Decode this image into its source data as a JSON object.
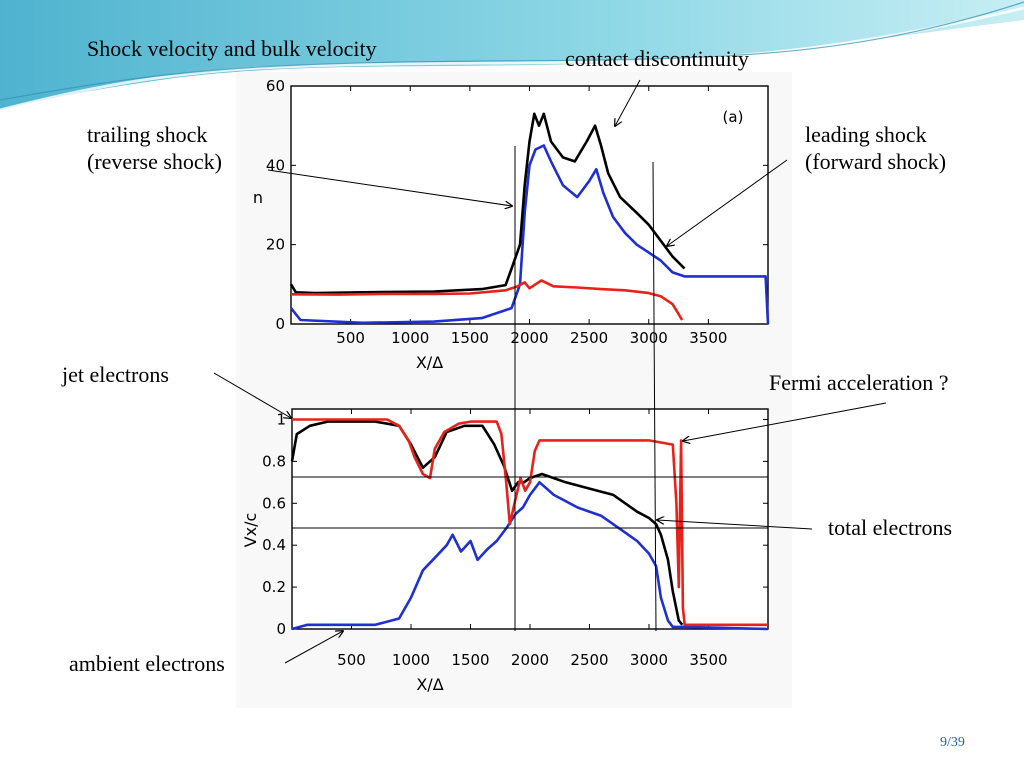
{
  "slide": {
    "title": "Shock velocity and bulk velocity",
    "page": "9/39"
  },
  "annotations": {
    "contact": "contact discontinuity",
    "trailing": "trailing shock\n(reverse shock)",
    "leading": "leading shock\n(forward shock)",
    "jet": "jet electrons",
    "fermi": "Fermi acceleration ?",
    "total": "total electrons",
    "ambient": "ambient electrons"
  },
  "colors": {
    "jet": "#e8221a",
    "total": "#000000",
    "ambient": "#1f2fd0",
    "accent": "#5bc8dc"
  },
  "chart_data": [
    {
      "type": "line",
      "panel": "(a)",
      "xlabel": "X/Δ",
      "ylabel": "n",
      "xlim": [
        0,
        4000
      ],
      "ylim": [
        0,
        60
      ],
      "xticks": [
        500,
        1000,
        1500,
        2000,
        2500,
        3000,
        3500
      ],
      "yticks": [
        0,
        20,
        40,
        60
      ],
      "series": [
        {
          "key": "total",
          "points": [
            [
              0,
              10
            ],
            [
              40,
              8
            ],
            [
              200,
              7.8
            ],
            [
              600,
              8
            ],
            [
              1200,
              8.2
            ],
            [
              1600,
              8.8
            ],
            [
              1800,
              9.8
            ],
            [
              1850,
              14
            ],
            [
              1920,
              20
            ],
            [
              1960,
              35
            ],
            [
              2000,
              46
            ],
            [
              2040,
              53
            ],
            [
              2080,
              50
            ],
            [
              2120,
              53
            ],
            [
              2180,
              46
            ],
            [
              2280,
              42
            ],
            [
              2380,
              41
            ],
            [
              2480,
              46
            ],
            [
              2550,
              50
            ],
            [
              2600,
              45
            ],
            [
              2660,
              38
            ],
            [
              2760,
              32
            ],
            [
              2900,
              28
            ],
            [
              3000,
              25
            ],
            [
              3100,
              21
            ],
            [
              3200,
              17
            ],
            [
              3300,
              14
            ]
          ]
        },
        {
          "key": "ambient",
          "points": [
            [
              0,
              4
            ],
            [
              80,
              1
            ],
            [
              600,
              0.3
            ],
            [
              1200,
              0.6
            ],
            [
              1600,
              1.5
            ],
            [
              1850,
              4
            ],
            [
              1920,
              10
            ],
            [
              1960,
              28
            ],
            [
              2000,
              40
            ],
            [
              2050,
              44
            ],
            [
              2120,
              45
            ],
            [
              2180,
              41
            ],
            [
              2280,
              35
            ],
            [
              2400,
              32
            ],
            [
              2500,
              36
            ],
            [
              2560,
              39
            ],
            [
              2620,
              33
            ],
            [
              2700,
              27
            ],
            [
              2800,
              23
            ],
            [
              2900,
              20
            ],
            [
              3000,
              18
            ],
            [
              3100,
              16
            ],
            [
              3200,
              13
            ],
            [
              3300,
              12
            ],
            [
              3980,
              12
            ],
            [
              4000,
              0
            ]
          ]
        },
        {
          "key": "jet",
          "points": [
            [
              0,
              7.5
            ],
            [
              400,
              7.4
            ],
            [
              800,
              7.6
            ],
            [
              1200,
              7.6
            ],
            [
              1500,
              7.7
            ],
            [
              1800,
              8.5
            ],
            [
              1900,
              9.5
            ],
            [
              1960,
              10.5
            ],
            [
              2000,
              9
            ],
            [
              2100,
              11
            ],
            [
              2200,
              9.5
            ],
            [
              2400,
              9.2
            ],
            [
              2600,
              8.8
            ],
            [
              2800,
              8.5
            ],
            [
              3000,
              7.8
            ],
            [
              3100,
              7
            ],
            [
              3200,
              5
            ],
            [
              3240,
              3
            ],
            [
              3280,
              1
            ]
          ]
        }
      ]
    },
    {
      "type": "line",
      "xlabel": "X/Δ",
      "ylabel": "Vx/c",
      "xlim": [
        0,
        4000
      ],
      "ylim": [
        0,
        1.05
      ],
      "xticks": [
        500,
        1000,
        1500,
        2000,
        2500,
        3000,
        3500
      ],
      "yticks": [
        0,
        0.2,
        0.4,
        0.6,
        0.8,
        1.0
      ],
      "series": [
        {
          "key": "total",
          "points": [
            [
              0,
              0.8
            ],
            [
              40,
              0.93
            ],
            [
              150,
              0.97
            ],
            [
              300,
              0.99
            ],
            [
              700,
              0.99
            ],
            [
              900,
              0.97
            ],
            [
              1000,
              0.88
            ],
            [
              1100,
              0.77
            ],
            [
              1200,
              0.82
            ],
            [
              1300,
              0.94
            ],
            [
              1450,
              0.97
            ],
            [
              1600,
              0.97
            ],
            [
              1700,
              0.88
            ],
            [
              1780,
              0.78
            ],
            [
              1850,
              0.66
            ],
            [
              1900,
              0.7
            ],
            [
              1950,
              0.7
            ],
            [
              2000,
              0.72
            ],
            [
              2100,
              0.74
            ],
            [
              2300,
              0.7
            ],
            [
              2500,
              0.67
            ],
            [
              2700,
              0.64
            ],
            [
              2900,
              0.56
            ],
            [
              3000,
              0.53
            ],
            [
              3060,
              0.5
            ],
            [
              3100,
              0.45
            ],
            [
              3160,
              0.33
            ],
            [
              3200,
              0.18
            ],
            [
              3250,
              0.04
            ],
            [
              3280,
              0.02
            ]
          ]
        },
        {
          "key": "ambient",
          "points": [
            [
              0,
              0
            ],
            [
              130,
              0.02
            ],
            [
              700,
              0.02
            ],
            [
              900,
              0.05
            ],
            [
              1000,
              0.15
            ],
            [
              1100,
              0.28
            ],
            [
              1200,
              0.34
            ],
            [
              1300,
              0.4
            ],
            [
              1350,
              0.45
            ],
            [
              1420,
              0.37
            ],
            [
              1500,
              0.42
            ],
            [
              1560,
              0.33
            ],
            [
              1640,
              0.38
            ],
            [
              1720,
              0.42
            ],
            [
              1800,
              0.48
            ],
            [
              1880,
              0.55
            ],
            [
              1940,
              0.58
            ],
            [
              2000,
              0.64
            ],
            [
              2080,
              0.7
            ],
            [
              2200,
              0.64
            ],
            [
              2400,
              0.58
            ],
            [
              2600,
              0.54
            ],
            [
              2800,
              0.46
            ],
            [
              2900,
              0.42
            ],
            [
              3000,
              0.36
            ],
            [
              3060,
              0.3
            ],
            [
              3100,
              0.15
            ],
            [
              3160,
              0.04
            ],
            [
              3200,
              0.01
            ],
            [
              3300,
              0.01
            ],
            [
              4000,
              0
            ]
          ]
        },
        {
          "key": "jet",
          "points": [
            [
              0,
              1.0
            ],
            [
              800,
              1.0
            ],
            [
              900,
              0.97
            ],
            [
              980,
              0.9
            ],
            [
              1030,
              0.82
            ],
            [
              1100,
              0.74
            ],
            [
              1160,
              0.72
            ],
            [
              1200,
              0.86
            ],
            [
              1280,
              0.94
            ],
            [
              1400,
              0.98
            ],
            [
              1500,
              0.99
            ],
            [
              1720,
              0.99
            ],
            [
              1760,
              0.93
            ],
            [
              1800,
              0.7
            ],
            [
              1830,
              0.5
            ],
            [
              1870,
              0.6
            ],
            [
              1920,
              0.72
            ],
            [
              1960,
              0.66
            ],
            [
              2000,
              0.7
            ],
            [
              2040,
              0.85
            ],
            [
              2080,
              0.9
            ],
            [
              2300,
              0.9
            ],
            [
              2700,
              0.9
            ],
            [
              3000,
              0.9
            ],
            [
              3200,
              0.88
            ],
            [
              3230,
              0.6
            ],
            [
              3250,
              0.2
            ],
            [
              3270,
              0.9
            ],
            [
              3285,
              0.1
            ],
            [
              3300,
              0.02
            ],
            [
              4000,
              0.02
            ]
          ]
        }
      ]
    }
  ]
}
